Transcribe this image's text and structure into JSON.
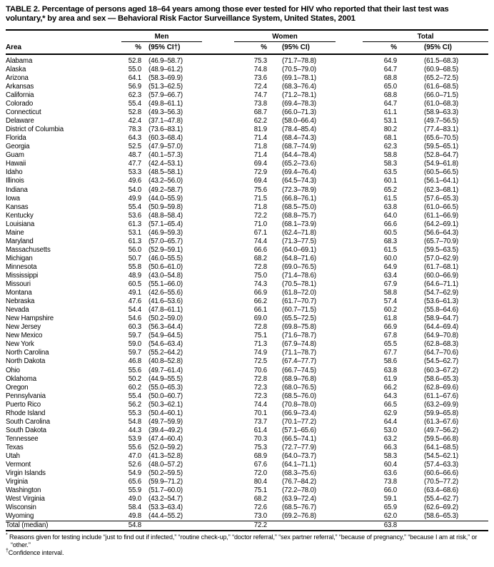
{
  "title": "TABLE 2. Percentage of persons aged 18–64 years among those ever tested for HIV who reported that their last test was voluntary,* by area and sex — Behavioral Risk Factor Surveillance System, United States, 2001",
  "table": {
    "groups": [
      "Men",
      "Women",
      "Total"
    ],
    "headers": {
      "area": "Area",
      "pct": "%",
      "men_ci": "(95% CI†)",
      "ci": "(95% CI)"
    },
    "row_fields": [
      "area",
      "men_pct",
      "men_ci",
      "women_pct",
      "women_ci",
      "total_pct",
      "total_ci"
    ],
    "rows": [
      [
        "Alabama",
        "52.8",
        "(46.9–58.7)",
        "75.3",
        "(71.7–78.8)",
        "64.9",
        "(61.5–68.3)"
      ],
      [
        "Alaska",
        "55.0",
        "(48.9–61.2)",
        "74.8",
        "(70.5–79.0)",
        "64.7",
        "(60.9–68.5)"
      ],
      [
        "Arizona",
        "64.1",
        "(58.3–69.9)",
        "73.6",
        "(69.1–78.1)",
        "68.8",
        "(65.2–72.5)"
      ],
      [
        "Arkansas",
        "56.9",
        "(51.3–62.5)",
        "72.4",
        "(68.3–76.4)",
        "65.0",
        "(61.6–68.5)"
      ],
      [
        "California",
        "62.3",
        "(57.9–66.7)",
        "74.7",
        "(71.2–78.1)",
        "68.8",
        "(66.0–71.5)"
      ],
      [
        "Colorado",
        "55.4",
        "(49.8–61.1)",
        "73.8",
        "(69.4–78.3)",
        "64.7",
        "(61.0–68.3)"
      ],
      [
        "Connecticut",
        "52.8",
        "(49.3–56.3)",
        "68.7",
        "(66.0–71.3)",
        "61.1",
        "(58.9–63.3)"
      ],
      [
        "Delaware",
        "42.4",
        "(37.1–47.8)",
        "62.2",
        "(58.0–66.4)",
        "53.1",
        "(49.7–56.5)"
      ],
      [
        "District of Columbia",
        "78.3",
        "(73.6–83.1)",
        "81.9",
        "(78.4–85.4)",
        "80.2",
        "(77.4–83.1)"
      ],
      [
        "Florida",
        "64.3",
        "(60.3–68.4)",
        "71.4",
        "(68.4–74.3)",
        "68.1",
        "(65.6–70.5)"
      ],
      [
        "Georgia",
        "52.5",
        "(47.9–57.0)",
        "71.8",
        "(68.7–74.9)",
        "62.3",
        "(59.5–65.1)"
      ],
      [
        "Guam",
        "48.7",
        "(40.1–57.3)",
        "71.4",
        "(64.4–78.4)",
        "58.8",
        "(52.8–64.7)"
      ],
      [
        "Hawaii",
        "47.7",
        "(42.4–53.1)",
        "69.4",
        "(65.2–73.6)",
        "58.3",
        "(54.9–61.8)"
      ],
      [
        "Idaho",
        "53.3",
        "(48.5–58.1)",
        "72.9",
        "(69.4–76.4)",
        "63.5",
        "(60.5–66.5)"
      ],
      [
        "Illinois",
        "49.6",
        "(43.2–56.0)",
        "69.4",
        "(64.5–74.3)",
        "60.1",
        "(56.1–64.1)"
      ],
      [
        "Indiana",
        "54.0",
        "(49.2–58.7)",
        "75.6",
        "(72.3–78.9)",
        "65.2",
        "(62.3–68.1)"
      ],
      [
        "Iowa",
        "49.9",
        "(44.0–55.9)",
        "71.5",
        "(66.8–76.1)",
        "61.5",
        "(57.6–65.3)"
      ],
      [
        "Kansas",
        "55.4",
        "(50.9–59.8)",
        "71.8",
        "(68.5–75.0)",
        "63.8",
        "(61.0–66.5)"
      ],
      [
        "Kentucky",
        "53.6",
        "(48.8–58.4)",
        "72.2",
        "(68.8–75.7)",
        "64.0",
        "(61.1–66.9)"
      ],
      [
        "Louisiana",
        "61.3",
        "(57.1–65.4)",
        "71.0",
        "(68.1–73.9)",
        "66.6",
        "(64.2–69.1)"
      ],
      [
        "Maine",
        "53.1",
        "(46.9–59.3)",
        "67.1",
        "(62.4–71.8)",
        "60.5",
        "(56.6–64.3)"
      ],
      [
        "Maryland",
        "61.3",
        "(57.0–65.7)",
        "74.4",
        "(71.3–77.5)",
        "68.3",
        "(65.7–70.9)"
      ],
      [
        "Massachusetts",
        "56.0",
        "(52.9–59.1)",
        "66.6",
        "(64.0–69.1)",
        "61.5",
        "(59.5–63.5)"
      ],
      [
        "Michigan",
        "50.7",
        "(46.0–55.5)",
        "68.2",
        "(64.8–71.6)",
        "60.0",
        "(57.0–62.9)"
      ],
      [
        "Minnesota",
        "55.8",
        "(50.6–61.0)",
        "72.8",
        "(69.0–76.5)",
        "64.9",
        "(61.7–68.1)"
      ],
      [
        "Mississippi",
        "48.9",
        "(43.0–54.8)",
        "75.0",
        "(71.4–78.6)",
        "63.4",
        "(60.0–66.9)"
      ],
      [
        "Missouri",
        "60.5",
        "(55.1–66.0)",
        "74.3",
        "(70.5–78.1)",
        "67.9",
        "(64.6–71.1)"
      ],
      [
        "Montana",
        "49.1",
        "(42.6–55.6)",
        "66.9",
        "(61.8–72.0)",
        "58.8",
        "(54.7–62.9)"
      ],
      [
        "Nebraska",
        "47.6",
        "(41.6–53.6)",
        "66.2",
        "(61.7–70.7)",
        "57.4",
        "(53.6–61.3)"
      ],
      [
        "Nevada",
        "54.4",
        "(47.8–61.1)",
        "66.1",
        "(60.7–71.5)",
        "60.2",
        "(55.8–64.6)"
      ],
      [
        "New Hampshire",
        "54.6",
        "(50.2–59.0)",
        "69.0",
        "(65.5–72.5)",
        "61.8",
        "(58.9–64.7)"
      ],
      [
        "New Jersey",
        "60.3",
        "(56.3–64.4)",
        "72.8",
        "(69.8–75.8)",
        "66.9",
        "(64.4–69.4)"
      ],
      [
        "New Mexico",
        "59.7",
        "(54.9–64.5)",
        "75.1",
        "(71.6–78.7)",
        "67.8",
        "(64.9–70.8)"
      ],
      [
        "New York",
        "59.0",
        "(54.6–63.4)",
        "71.3",
        "(67.9–74.8)",
        "65.5",
        "(62.8–68.3)"
      ],
      [
        "North Carolina",
        "59.7",
        "(55.2–64.2)",
        "74.9",
        "(71.1–78.7)",
        "67.7",
        "(64.7–70.6)"
      ],
      [
        "North Dakota",
        "46.8",
        "(40.8–52.8)",
        "72.5",
        "(67.4–77.7)",
        "58.6",
        "(54.5–62.7)"
      ],
      [
        "Ohio",
        "55.6",
        "(49.7–61.4)",
        "70.6",
        "(66.7–74.5)",
        "63.8",
        "(60.3–67.2)"
      ],
      [
        "Oklahoma",
        "50.2",
        "(44.9–55.5)",
        "72.8",
        "(68.9–76.8)",
        "61.9",
        "(58.6–65.3)"
      ],
      [
        "Oregon",
        "60.2",
        "(55.0–65.3)",
        "72.3",
        "(68.0–76.5)",
        "66.2",
        "(62.8–69.6)"
      ],
      [
        "Pennsylvania",
        "55.4",
        "(50.0–60.7)",
        "72.3",
        "(68.5–76.0)",
        "64.3",
        "(61.1–67.6)"
      ],
      [
        "Puerto Rico",
        "56.2",
        "(50.3–62.1)",
        "74.4",
        "(70.8–78.0)",
        "66.5",
        "(63.2–69.9)"
      ],
      [
        "Rhode Island",
        "55.3",
        "(50.4–60.1)",
        "70.1",
        "(66.9–73.4)",
        "62.9",
        "(59.9–65.8)"
      ],
      [
        "South Carolina",
        "54.8",
        "(49.7–59.9)",
        "73.7",
        "(70.1–77.2)",
        "64.4",
        "(61.3–67.6)"
      ],
      [
        "South Dakota",
        "44.3",
        "(39.4–49.2)",
        "61.4",
        "(57.1–65.6)",
        "53.0",
        "(49.7–56.2)"
      ],
      [
        "Tennessee",
        "53.9",
        "(47.4–60.4)",
        "70.3",
        "(66.5–74.1)",
        "63.2",
        "(59.5–66.8)"
      ],
      [
        "Texas",
        "55.6",
        "(52.0–59.2)",
        "75.3",
        "(72.7–77.9)",
        "66.3",
        "(64.1–68.5)"
      ],
      [
        "Utah",
        "47.0",
        "(41.3–52.8)",
        "68.9",
        "(64.0–73.7)",
        "58.3",
        "(54.5–62.1)"
      ],
      [
        "Vermont",
        "52.6",
        "(48.0–57.2)",
        "67.6",
        "(64.1–71.1)",
        "60.4",
        "(57.4–63.3)"
      ],
      [
        "Virgin Islands",
        "54.9",
        "(50.2–59.5)",
        "72.0",
        "(68.3–75.6)",
        "63.6",
        "(60.6–66.6)"
      ],
      [
        "Virginia",
        "65.6",
        "(59.9–71.2)",
        "80.4",
        "(76.7–84.2)",
        "73.8",
        "(70.5–77.2)"
      ],
      [
        "Washington",
        "55.9",
        "(51.7–60.0)",
        "75.1",
        "(72.2–78.0)",
        "66.0",
        "(63.4–68.6)"
      ],
      [
        "West Virginia",
        "49.0",
        "(43.2–54.7)",
        "68.2",
        "(63.9–72.4)",
        "59.1",
        "(55.4–62.7)"
      ],
      [
        "Wisconsin",
        "58.4",
        "(53.3–63.4)",
        "72.6",
        "(68.5–76.7)",
        "65.9",
        "(62.6–69.2)"
      ],
      [
        "Wyoming",
        "49.8",
        "(44.4–55.2)",
        "73.0",
        "(69.2–76.8)",
        "62.0",
        "(58.6–65.3)"
      ]
    ],
    "total": {
      "area": "Total (median)",
      "men_pct": "54.8",
      "women_pct": "72.2",
      "total_pct": "63.8"
    }
  },
  "footnotes": [
    {
      "marker": "*",
      "text": " Reasons given for testing include “just to find out if infected,” “routine check-up,” “doctor referral,” “sex partner referral,” “because of pregnancy,” “because I am at risk,” or “other.”"
    },
    {
      "marker": "†",
      "text": "Confidence interval."
    }
  ]
}
